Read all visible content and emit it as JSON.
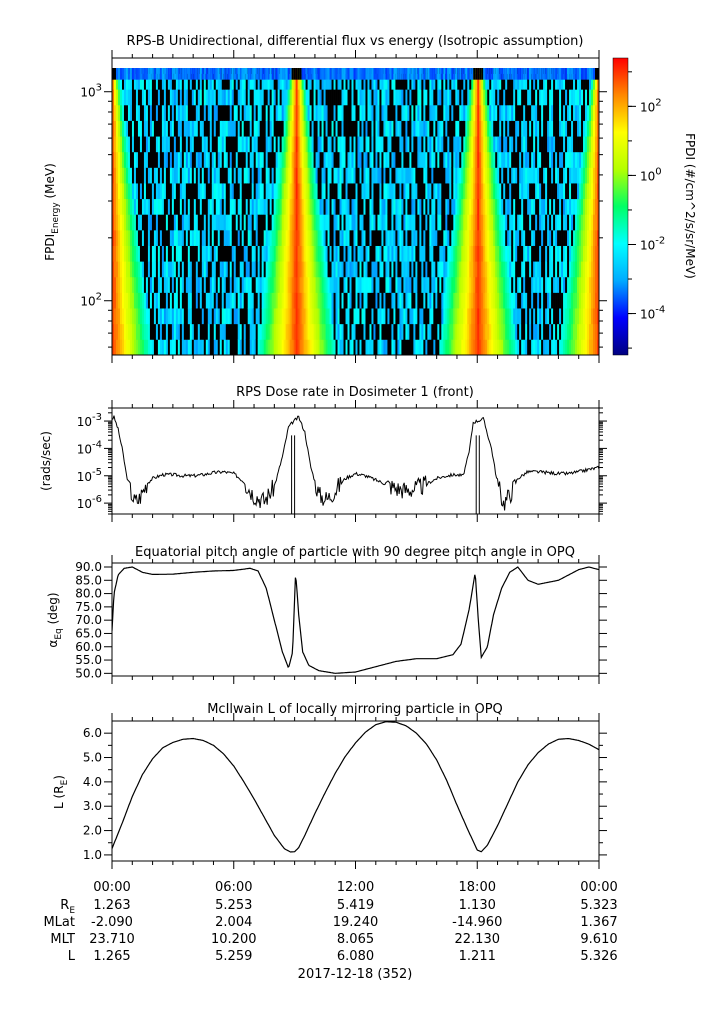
{
  "chart_data": [
    {
      "type": "heatmap",
      "title": "RPS-B  Unidirectional, differential flux vs energy (Isotropic assumption)",
      "ylabel_main": "FPDI",
      "ylabel_sub": "Energy",
      "ylabel_unit": "(MeV)",
      "y_scale": "log",
      "ylim": [
        55,
        1450
      ],
      "y_ticks": [
        {
          "value": 100,
          "base": "10",
          "exp": "2"
        },
        {
          "value": 1000,
          "base": "10",
          "exp": "3"
        }
      ],
      "energy_channels": 19,
      "time_hours": [
        0,
        24
      ],
      "perigee_hours": [
        0.0,
        9.1,
        18.05,
        24.0
      ],
      "colorbar": {
        "label": "FPDI (#/cm^2/s/sr/MeV)",
        "scale": "log",
        "range": [
          -5.2,
          3.4
        ],
        "colors": [
          "#000080",
          "#0000ff",
          "#00aaff",
          "#00ffff",
          "#00ff66",
          "#b4ff00",
          "#ffff00",
          "#ff8800",
          "#ff0000"
        ],
        "ticks": [
          {
            "base": "10",
            "exp": "2",
            "value": 2
          },
          {
            "base": "10",
            "exp": "0",
            "value": 0
          },
          {
            "base": "10",
            "exp": "-2",
            "value": -2
          },
          {
            "base": "10",
            "exp": "-4",
            "value": -4
          }
        ]
      }
    },
    {
      "type": "line",
      "title": "RPS  Dose rate in Dosimeter 1 (front)",
      "ylabel": "(rads/sec)",
      "y_scale": "log",
      "ylim": [
        4e-07,
        0.003
      ],
      "y_ticks": [
        {
          "value": 1e-06,
          "base": "10",
          "exp": "-6"
        },
        {
          "value": 1e-05,
          "base": "10",
          "exp": "-5"
        },
        {
          "value": 0.0001,
          "base": "10",
          "exp": "-4"
        },
        {
          "value": 0.001,
          "base": "10",
          "exp": "-3"
        }
      ],
      "x": [
        0,
        0.1,
        0.3,
        0.5,
        0.7,
        0.9,
        1.1,
        1.3,
        1.5,
        1.7,
        2.0,
        2.5,
        3.0,
        3.5,
        4.0,
        4.5,
        5.0,
        5.5,
        6.0,
        6.5,
        7.0,
        7.5,
        8.0,
        8.4,
        8.7,
        8.9,
        9.2,
        9.5,
        9.8,
        10.2,
        10.6,
        11.0,
        11.5,
        12.0,
        12.5,
        13.0,
        13.5,
        14.0,
        14.5,
        15.0,
        15.5,
        16.0,
        16.5,
        16.9,
        17.3,
        17.6,
        17.8,
        18.3,
        18.7,
        19.0,
        19.3,
        19.6,
        20.0,
        20.5,
        21.0,
        21.5,
        22.0,
        22.5,
        23.0,
        23.5,
        24.0
      ],
      "y": [
        0.0012,
        0.0014,
        0.0005,
        0.0001,
        1.2e-05,
        3e-06,
        1.2e-06,
        1.3e-06,
        2.5e-06,
        5e-06,
        8e-06,
        1.1e-05,
        1.1e-05,
        1e-05,
        1e-05,
        1.1e-05,
        1.3e-05,
        1.4e-05,
        1.2e-05,
        6e-06,
        2e-06,
        1.2e-06,
        4e-06,
        5e-05,
        0.0006,
        0.0009,
        0.0014,
        0.0004,
        2e-05,
        2e-06,
        1.4e-06,
        3e-06,
        8e-06,
        1.2e-05,
        1e-05,
        7e-06,
        5e-06,
        3.5e-06,
        3e-06,
        3.5e-06,
        5e-06,
        8e-06,
        1e-05,
        1.1e-05,
        1e-05,
        7e-05,
        0.0009,
        0.0012,
        0.0001,
        5e-06,
        1e-06,
        2e-06,
        8e-06,
        1.4e-05,
        1.4e-05,
        1.3e-05,
        1.2e-05,
        1.2e-05,
        1.4e-05,
        1.7e-05,
        2e-05
      ]
    },
    {
      "type": "line",
      "title": "Equatorial pitch angle of particle with 90 degree pitch angle in OPQ",
      "ylabel_main": "α",
      "ylabel_sub": "Eq",
      "ylabel_unit": "(deg)",
      "ylim": [
        49,
        91.5
      ],
      "y_ticks": [
        50,
        55,
        60,
        65,
        70,
        75,
        80,
        85,
        90
      ],
      "x": [
        0,
        0.1,
        0.3,
        0.6,
        1.0,
        1.5,
        2.0,
        3.0,
        4.0,
        5.0,
        6.0,
        6.8,
        7.2,
        7.6,
        8.0,
        8.4,
        8.7,
        8.9,
        9.05,
        9.2,
        9.4,
        9.7,
        10.2,
        11.0,
        12.0,
        13.0,
        14.0,
        15.0,
        16.0,
        16.8,
        17.2,
        17.6,
        17.9,
        18.05,
        18.2,
        18.5,
        18.8,
        19.2,
        19.6,
        20.0,
        20.5,
        21.0,
        22.0,
        23.0,
        23.5,
        24.0
      ],
      "y": [
        66,
        80,
        87,
        89.5,
        90,
        88,
        87.2,
        87.3,
        88,
        88.5,
        88.7,
        89.5,
        88.5,
        82,
        70,
        58,
        52,
        58,
        88,
        72,
        58,
        53,
        51,
        50,
        50.5,
        52.5,
        54.5,
        55.5,
        55.5,
        57,
        61,
        74,
        88,
        70,
        56,
        60,
        72,
        82,
        88,
        90,
        85,
        83.5,
        85,
        89,
        90,
        89
      ]
    },
    {
      "type": "line",
      "title": "McIlwain L of locally mirroring particle in OPQ",
      "ylabel_main": "L (R",
      "ylabel_sub": "E",
      "ylabel_unit": ")",
      "ylim": [
        0.75,
        6.5
      ],
      "y_ticks": [
        1,
        2,
        3,
        4,
        5,
        6
      ],
      "x": [
        0,
        0.5,
        1.0,
        1.5,
        2.0,
        2.5,
        3.0,
        3.5,
        4.0,
        4.5,
        5.0,
        5.5,
        6.0,
        6.5,
        7.0,
        7.5,
        8.0,
        8.5,
        8.8,
        9.0,
        9.2,
        9.5,
        10.0,
        10.5,
        11.0,
        11.5,
        12.0,
        12.5,
        13.0,
        13.5,
        14.0,
        14.5,
        15.0,
        15.5,
        16.0,
        16.5,
        17.0,
        17.5,
        18.0,
        18.2,
        18.5,
        19.0,
        19.5,
        20.0,
        20.5,
        21.0,
        21.5,
        22.0,
        22.5,
        23.0,
        23.5,
        24.0
      ],
      "y": [
        1.26,
        2.3,
        3.4,
        4.3,
        4.95,
        5.4,
        5.62,
        5.75,
        5.78,
        5.7,
        5.5,
        5.15,
        4.65,
        4.0,
        3.3,
        2.55,
        1.8,
        1.25,
        1.12,
        1.13,
        1.3,
        1.8,
        2.7,
        3.55,
        4.35,
        5.05,
        5.6,
        6.05,
        6.35,
        6.47,
        6.45,
        6.3,
        6.0,
        5.55,
        4.9,
        4.05,
        3.05,
        2.1,
        1.2,
        1.13,
        1.4,
        2.2,
        3.1,
        4.0,
        4.7,
        5.2,
        5.55,
        5.75,
        5.78,
        5.7,
        5.55,
        5.32
      ]
    }
  ],
  "time_axis": {
    "hours": [
      0,
      6,
      12,
      18,
      24
    ],
    "labels": [
      "00:00",
      "06:00",
      "12:00",
      "18:00",
      "00:00"
    ],
    "date_label": "2017-12-18 (352)"
  },
  "ephemeris": {
    "rows": [
      {
        "label": "R",
        "label_sub": "E",
        "values": [
          "1.263",
          "5.253",
          "5.419",
          "1.130",
          "5.323"
        ]
      },
      {
        "label": "MLat",
        "label_sub": "",
        "values": [
          "-2.090",
          "2.004",
          "19.240",
          "-14.960",
          "1.367"
        ]
      },
      {
        "label": "MLT",
        "label_sub": "",
        "values": [
          "23.710",
          "10.200",
          "8.065",
          "22.130",
          "9.610"
        ]
      },
      {
        "label": "L",
        "label_sub": "",
        "values": [
          "1.265",
          "5.259",
          "6.080",
          "1.211",
          "5.326"
        ]
      }
    ]
  }
}
